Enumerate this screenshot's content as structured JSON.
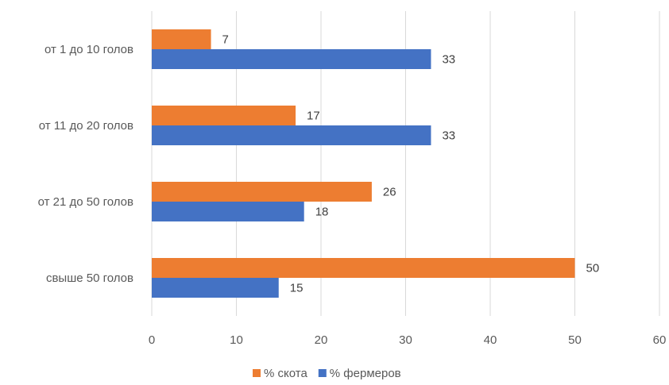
{
  "chart_data": {
    "type": "bar",
    "orientation": "horizontal",
    "categories": [
      "от 1 до 10 голов",
      "от 11 до 20 голов",
      "от 21 до 50 голов",
      "свыше 50 голов"
    ],
    "series": [
      {
        "name": "% скота",
        "values": [
          7,
          17,
          26,
          50
        ],
        "color": "#ED7D31"
      },
      {
        "name": "% фермеров",
        "values": [
          33,
          33,
          18,
          15
        ],
        "color": "#4472C4"
      }
    ],
    "xlim": [
      0,
      60
    ],
    "xticks": [
      0,
      10,
      20,
      30,
      40,
      50,
      60
    ],
    "grid": true,
    "legend_position": "bottom",
    "gridline_color": "#D9D9D9"
  }
}
